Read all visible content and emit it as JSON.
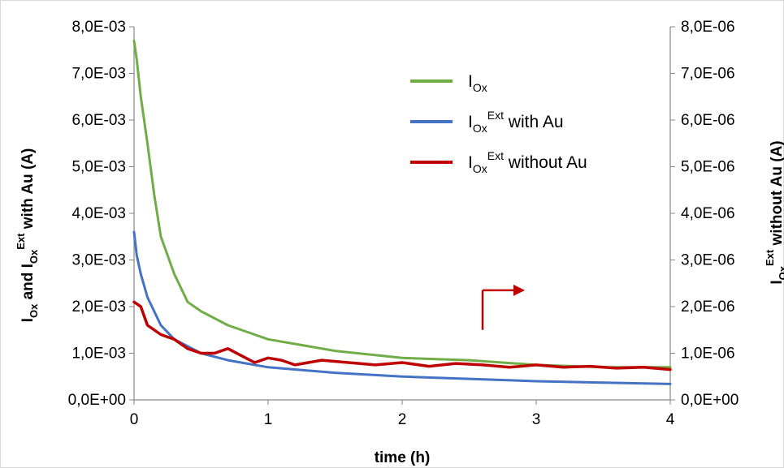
{
  "chart_data": {
    "type": "line",
    "xlabel": "time (h)",
    "ylabel_left": {
      "base": "I",
      "sub": "Ox",
      "mid": " and I",
      "sub2": "Ox",
      "sup2": "Ext",
      "tail": " with Au (A)"
    },
    "ylabel_right": {
      "base": "I",
      "sub": "Ox",
      "sup": "Ext",
      "tail": " without Au (A)"
    },
    "xlim": [
      0,
      4
    ],
    "ylim_left": [
      0,
      0.008
    ],
    "ylim_right": [
      0,
      8e-06
    ],
    "x_ticks": [
      "0",
      "1",
      "2",
      "3",
      "4"
    ],
    "y_left_ticks": [
      "0,0E+00",
      "1,0E-03",
      "2,0E-03",
      "3,0E-03",
      "4,0E-03",
      "5,0E-03",
      "6,0E-03",
      "7,0E-03",
      "8,0E-03"
    ],
    "y_right_ticks": [
      "0,0E+00",
      "1,0E-06",
      "2,0E-06",
      "3,0E-06",
      "4,0E-06",
      "5,0E-06",
      "6,0E-06",
      "7,0E-06",
      "8,0E-06"
    ],
    "grid": false,
    "legend_position": "top-right",
    "series": [
      {
        "legend": {
          "base": "I",
          "sub": "Ox",
          "sup": "",
          "tail": ""
        },
        "color": "#70ad47",
        "axis": "left",
        "x": [
          0,
          0.02,
          0.05,
          0.1,
          0.15,
          0.2,
          0.3,
          0.4,
          0.5,
          0.7,
          0.9,
          1.0,
          1.2,
          1.5,
          2.0,
          2.5,
          3.0,
          3.5,
          4.0
        ],
        "y": [
          0.0077,
          0.0073,
          0.0065,
          0.0055,
          0.0044,
          0.0035,
          0.0027,
          0.0021,
          0.0019,
          0.0016,
          0.0014,
          0.0013,
          0.0012,
          0.00105,
          0.0009,
          0.00085,
          0.00075,
          0.0007,
          0.0007
        ]
      },
      {
        "legend": {
          "base": "I",
          "sub": "Ox",
          "sup": "Ext",
          "tail": " with Au"
        },
        "color": "#4472c4",
        "axis": "left",
        "x": [
          0,
          0.02,
          0.05,
          0.1,
          0.2,
          0.3,
          0.5,
          0.7,
          1.0,
          1.5,
          2.0,
          2.5,
          3.0,
          3.5,
          4.0
        ],
        "y": [
          0.0036,
          0.0031,
          0.0027,
          0.0022,
          0.0016,
          0.0013,
          0.001,
          0.00085,
          0.0007,
          0.00058,
          0.0005,
          0.00045,
          0.0004,
          0.00037,
          0.00034
        ]
      },
      {
        "legend": {
          "base": "I",
          "sub": "Ox",
          "sup": "Ext",
          "tail": " without Au"
        },
        "color": "#c00000",
        "axis": "right",
        "x": [
          0,
          0.05,
          0.1,
          0.2,
          0.3,
          0.4,
          0.5,
          0.6,
          0.7,
          0.8,
          0.9,
          1.0,
          1.1,
          1.2,
          1.4,
          1.6,
          1.8,
          2.0,
          2.2,
          2.4,
          2.6,
          2.8,
          3.0,
          3.2,
          3.4,
          3.6,
          3.8,
          4.0
        ],
        "y": [
          2.1e-06,
          2e-06,
          1.6e-06,
          1.4e-06,
          1.3e-06,
          1.1e-06,
          1e-06,
          1e-06,
          1.1e-06,
          9.5e-07,
          8e-07,
          9e-07,
          8.5e-07,
          7.5e-07,
          8.5e-07,
          8e-07,
          7.5e-07,
          8e-07,
          7.2e-07,
          7.8e-07,
          7.5e-07,
          7e-07,
          7.5e-07,
          7e-07,
          7.2e-07,
          6.8e-07,
          7e-07,
          6.5e-07
        ]
      }
    ],
    "annotation": {
      "type": "arrow",
      "direction": "right",
      "color": "#c00000",
      "x": 2.6,
      "y_left": 0.0015,
      "y_top_left": 0.00235
    }
  }
}
